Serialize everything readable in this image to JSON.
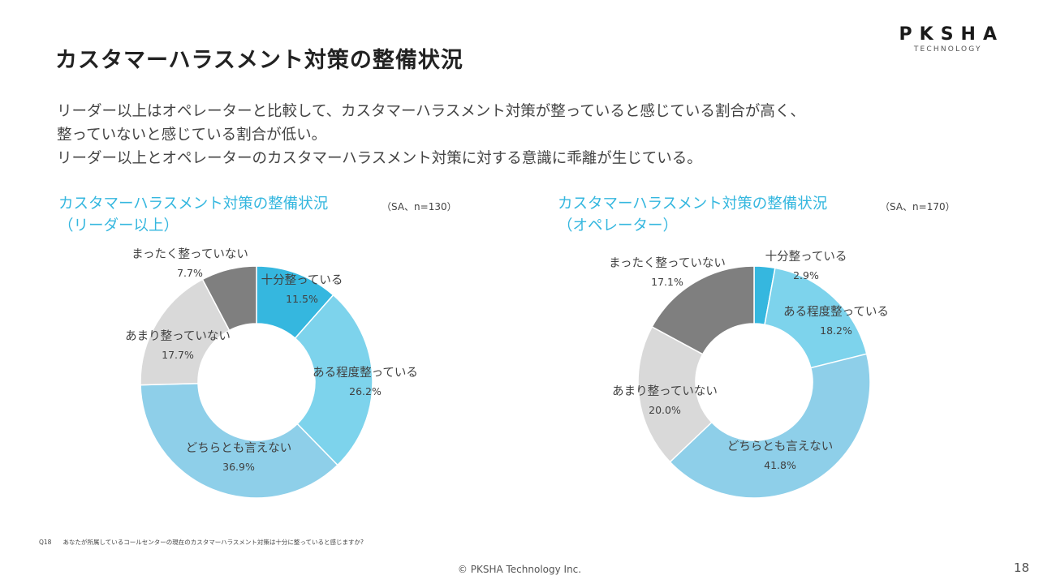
{
  "page_title": "カスタマーハラスメント対策の整備状況",
  "logo": {
    "name": "PKSHA",
    "sub": "TECHNOLOGY"
  },
  "summary": [
    "リーダー以上はオペレーターと比較して、カスタマーハラスメント対策が整っていると感じている割合が高く、",
    "整っていないと感じている割合が低い。",
    "リーダー以上とオペレーターのカスタマーハラスメント対策に対する意識に乖離が生じている。"
  ],
  "chart_data": [
    {
      "type": "pie",
      "title_line1": "カスタマーハラスメント対策の整備状況",
      "title_line2": "（リーダー以上）",
      "note": "（SA、n=130）",
      "categories": [
        "十分整っている",
        "ある程度整っている",
        "どちらとも言えない",
        "あまり整っていない",
        "まったく整っていない"
      ],
      "values": [
        11.5,
        26.2,
        36.9,
        17.7,
        7.7
      ],
      "labels": [
        "11.5%",
        "26.2%",
        "36.9%",
        "17.7%",
        "7.7%"
      ],
      "colors": [
        "#35b7df",
        "#7dd3ec",
        "#8ecfe9",
        "#d9d9d9",
        "#7f7f7f"
      ]
    },
    {
      "type": "pie",
      "title_line1": "カスタマーハラスメント対策の整備状況",
      "title_line2": "（オペレーター）",
      "note": "（SA、n=170）",
      "categories": [
        "十分整っている",
        "ある程度整っている",
        "どちらとも言えない",
        "あまり整っていない",
        "まったく整っていない"
      ],
      "values": [
        2.9,
        18.2,
        41.8,
        20.0,
        17.1
      ],
      "labels": [
        "2.9%",
        "18.2%",
        "41.8%",
        "20.0%",
        "17.1%"
      ],
      "colors": [
        "#35b7df",
        "#7dd3ec",
        "#8ecfe9",
        "#d9d9d9",
        "#7f7f7f"
      ]
    }
  ],
  "footnote": {
    "q": "Q18",
    "text": "あなたが所属しているコールセンターの現在のカスタマーハラスメント対策は十分に整っていると感じますか?"
  },
  "copyright": "© PKSHA Technology Inc.",
  "page_number": "18"
}
